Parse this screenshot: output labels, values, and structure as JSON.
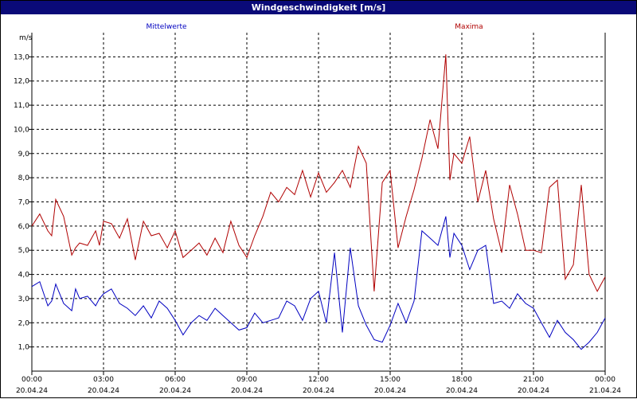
{
  "title": "Windgeschwindigkeit [m/s]",
  "chart_data": {
    "type": "line",
    "title": "Windgeschwindigkeit [m/s]",
    "ylabel": "m/s",
    "xlabel": "",
    "ylim": [
      0,
      14
    ],
    "yticks": [
      "1,0",
      "2,0",
      "3,0",
      "4,0",
      "5,0",
      "6,0",
      "7,0",
      "8,0",
      "9,0",
      "10,0",
      "11,0",
      "12,0",
      "13,0"
    ],
    "xlim": [
      0,
      24
    ],
    "xticks": [
      {
        "time": "00:00",
        "date": "20.04.24"
      },
      {
        "time": "03:00",
        "date": "20.04.24"
      },
      {
        "time": "06:00",
        "date": "20.04.24"
      },
      {
        "time": "09:00",
        "date": "20.04.24"
      },
      {
        "time": "12:00",
        "date": "20.04.24"
      },
      {
        "time": "15:00",
        "date": "20.04.24"
      },
      {
        "time": "18:00",
        "date": "20.04.24"
      },
      {
        "time": "21:00",
        "date": "20.04.24"
      },
      {
        "time": "00:00",
        "date": "21.04.24"
      }
    ],
    "grid": true,
    "series": [
      {
        "name": "Mittelwerte",
        "color": "#0000c0",
        "x_hours": [
          0,
          0.33,
          0.67,
          0.83,
          1.0,
          1.33,
          1.67,
          1.83,
          2.0,
          2.33,
          2.67,
          2.83,
          3.0,
          3.33,
          3.67,
          4.0,
          4.33,
          4.67,
          5.0,
          5.33,
          5.67,
          6.0,
          6.33,
          6.67,
          7.0,
          7.33,
          7.67,
          8.0,
          8.33,
          8.67,
          9.0,
          9.33,
          9.67,
          10.0,
          10.33,
          10.67,
          11.0,
          11.33,
          11.67,
          12.0,
          12.33,
          12.67,
          13.0,
          13.33,
          13.67,
          14.0,
          14.33,
          14.67,
          15.0,
          15.33,
          15.67,
          16.0,
          16.33,
          16.67,
          17.0,
          17.33,
          17.5,
          17.67,
          18.0,
          18.33,
          18.67,
          19.0,
          19.33,
          19.67,
          20.0,
          20.33,
          20.67,
          21.0,
          21.33,
          21.67,
          22.0,
          22.33,
          22.67,
          23.0,
          23.33,
          23.67,
          24.0
        ],
        "values": [
          3.5,
          3.7,
          2.7,
          2.9,
          3.6,
          2.8,
          2.5,
          3.4,
          3.0,
          3.1,
          2.7,
          3.0,
          3.2,
          3.4,
          2.8,
          2.6,
          2.3,
          2.7,
          2.2,
          2.9,
          2.6,
          2.1,
          1.5,
          2.0,
          2.3,
          2.1,
          2.6,
          2.3,
          2.0,
          1.7,
          1.8,
          2.4,
          2.0,
          2.1,
          2.2,
          2.9,
          2.7,
          2.1,
          3.0,
          3.3,
          2.0,
          4.9,
          1.6,
          5.1,
          2.7,
          1.9,
          1.3,
          1.2,
          1.9,
          2.8,
          2.0,
          2.9,
          5.8,
          5.5,
          5.2,
          6.4,
          4.7,
          5.7,
          5.2,
          4.2,
          5.0,
          5.2,
          2.8,
          2.9,
          2.6,
          3.2,
          2.8,
          2.6,
          2.0,
          1.4,
          2.1,
          1.6,
          1.3,
          0.9,
          1.2,
          1.6,
          2.2
        ]
      },
      {
        "name": "Maxima",
        "color": "#b00000",
        "x_hours": [
          0,
          0.33,
          0.67,
          0.83,
          1.0,
          1.33,
          1.67,
          1.83,
          2.0,
          2.33,
          2.67,
          2.83,
          3.0,
          3.33,
          3.67,
          4.0,
          4.33,
          4.67,
          5.0,
          5.33,
          5.67,
          6.0,
          6.33,
          6.67,
          7.0,
          7.33,
          7.67,
          8.0,
          8.33,
          8.67,
          9.0,
          9.33,
          9.67,
          10.0,
          10.33,
          10.67,
          11.0,
          11.33,
          11.67,
          12.0,
          12.33,
          12.67,
          13.0,
          13.33,
          13.67,
          14.0,
          14.33,
          14.67,
          15.0,
          15.33,
          15.67,
          16.0,
          16.33,
          16.67,
          17.0,
          17.33,
          17.5,
          17.67,
          18.0,
          18.33,
          18.67,
          19.0,
          19.33,
          19.67,
          20.0,
          20.33,
          20.67,
          21.0,
          21.33,
          21.67,
          22.0,
          22.33,
          22.67,
          23.0,
          23.33,
          23.67,
          24.0
        ],
        "values": [
          6.0,
          6.5,
          5.8,
          5.6,
          7.1,
          6.4,
          4.8,
          5.1,
          5.3,
          5.2,
          5.8,
          5.2,
          6.2,
          6.1,
          5.5,
          6.3,
          4.6,
          6.2,
          5.6,
          5.7,
          5.1,
          5.8,
          4.7,
          5.0,
          5.3,
          4.8,
          5.5,
          4.9,
          6.2,
          5.2,
          4.7,
          5.6,
          6.4,
          7.4,
          7.0,
          7.6,
          7.3,
          8.3,
          7.2,
          8.2,
          7.4,
          7.8,
          8.3,
          7.6,
          9.3,
          8.6,
          3.3,
          7.8,
          8.3,
          5.1,
          6.4,
          7.5,
          8.8,
          10.4,
          9.2,
          13.1,
          7.9,
          9.0,
          8.6,
          9.7,
          7.0,
          8.3,
          6.3,
          4.9,
          7.7,
          6.5,
          5.0,
          5.0,
          4.9,
          7.6,
          7.9,
          3.8,
          4.4,
          7.7,
          4.0,
          3.3,
          3.9
        ]
      }
    ]
  }
}
